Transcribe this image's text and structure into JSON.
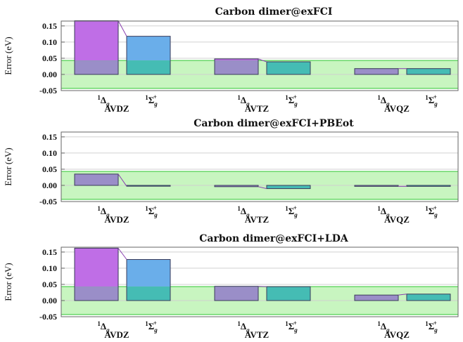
{
  "colors": {
    "band_fill": "#c8f5c0",
    "band_edge": "#5ed45e",
    "grid": "#d0d0d0",
    "frame": "#666666",
    "state_colors": {
      "1Δg": "#bf6ee6",
      "1Σg+": "#6aaeea"
    },
    "overlap_colors": {
      "1Δg": "#9a8ec8",
      "1Σg+": "#45bcb4"
    },
    "connector": "#8a3fb0",
    "bar_edge": "#3a3a5a"
  },
  "band": {
    "low": -0.043,
    "high": 0.043
  },
  "chart_data": [
    {
      "type": "bar",
      "title": "Carbon dimer@exFCI",
      "ylabel": "Error (eV)",
      "ylim": [
        -0.05,
        0.165
      ],
      "yticks": [
        "-0.05",
        "0.00",
        "0.05",
        "0.10",
        "0.15"
      ],
      "ytick_values": [
        -0.05,
        0.0,
        0.05,
        0.1,
        0.15
      ],
      "grid": true,
      "groups": [
        "AVDZ",
        "AVTZ",
        "AVQZ"
      ],
      "state_labels": {
        "1Δg": {
          "sup": "1",
          "main": "Δ",
          "sub": "g",
          "subsup": ""
        },
        "1Σg+": {
          "sup": "1",
          "main": "Σ",
          "sub": "g",
          "subsup": "+"
        }
      },
      "series": [
        {
          "state": "1Δg",
          "values": [
            0.166,
            0.048,
            0.018
          ]
        },
        {
          "state": "1Σg+",
          "values": [
            0.118,
            0.039,
            0.018
          ]
        }
      ]
    },
    {
      "type": "bar",
      "title": "Carbon dimer@exFCI+PBEot",
      "ylabel": "Error (eV)",
      "ylim": [
        -0.05,
        0.165
      ],
      "yticks": [
        "-0.05",
        "0.00",
        "0.05",
        "0.10",
        "0.15"
      ],
      "ytick_values": [
        -0.05,
        0.0,
        0.05,
        0.1,
        0.15
      ],
      "grid": true,
      "groups": [
        "AVDZ",
        "AVTZ",
        "AVQZ"
      ],
      "state_labels": {
        "1Δg": {
          "sup": "1",
          "main": "Δ",
          "sub": "g",
          "subsup": ""
        },
        "1Σg+": {
          "sup": "1",
          "main": "Σ",
          "sub": "g",
          "subsup": "+"
        }
      },
      "series": [
        {
          "state": "1Δg",
          "values": [
            0.035,
            -0.004,
            -0.003
          ]
        },
        {
          "state": "1Σg+",
          "values": [
            -0.002,
            -0.01,
            -0.003
          ]
        }
      ]
    },
    {
      "type": "bar",
      "title": "Carbon dimer@exFCI+LDA",
      "ylabel": "Error (eV)",
      "ylim": [
        -0.05,
        0.165
      ],
      "yticks": [
        "-0.05",
        "0.00",
        "0.05",
        "0.10",
        "0.15"
      ],
      "ytick_values": [
        -0.05,
        0.0,
        0.05,
        0.1,
        0.15
      ],
      "grid": true,
      "groups": [
        "AVDZ",
        "AVTZ",
        "AVQZ"
      ],
      "state_labels": {
        "1Δg": {
          "sup": "1",
          "main": "Δ",
          "sub": "g",
          "subsup": ""
        },
        "1Σg+": {
          "sup": "1",
          "main": "Σ",
          "sub": "g",
          "subsup": "+"
        }
      },
      "series": [
        {
          "state": "1Δg",
          "values": [
            0.162,
            0.044,
            0.017
          ]
        },
        {
          "state": "1Σg+",
          "values": [
            0.127,
            0.043,
            0.02
          ]
        }
      ]
    }
  ]
}
